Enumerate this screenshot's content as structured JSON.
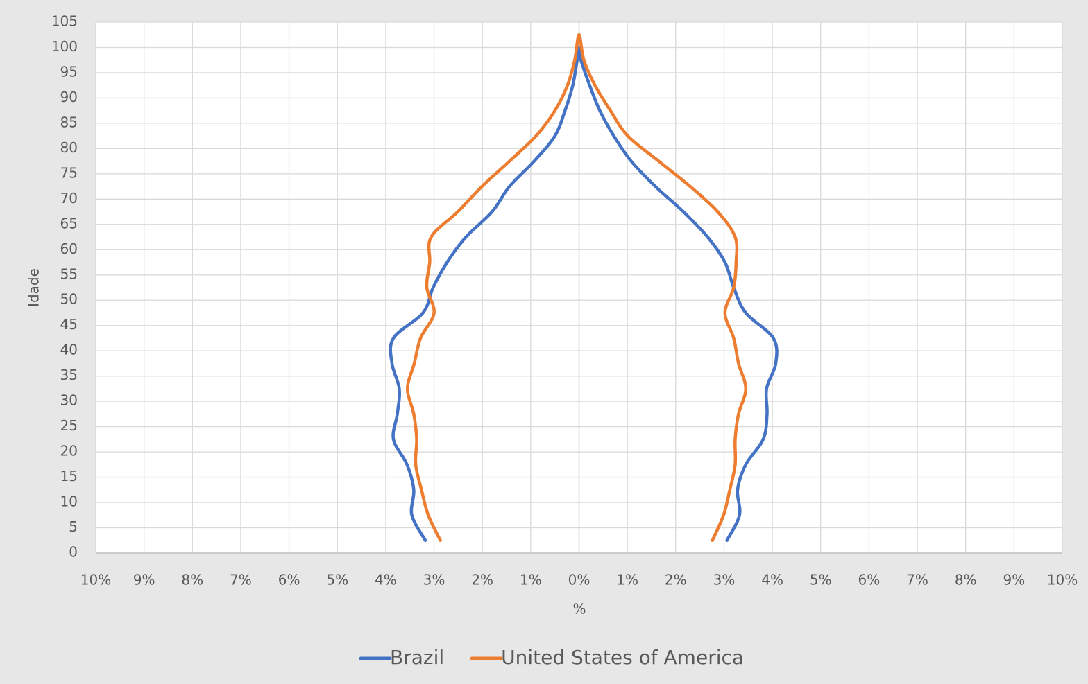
{
  "chart_data": {
    "type": "line",
    "x_label": "%",
    "y_label": "Idade",
    "xlim": [
      -10,
      10
    ],
    "ylim": [
      0,
      105
    ],
    "xticks": [
      {
        "value": -10,
        "label": "10%"
      },
      {
        "value": -9,
        "label": "9%"
      },
      {
        "value": -8,
        "label": "8%"
      },
      {
        "value": -7,
        "label": "7%"
      },
      {
        "value": -6,
        "label": "6%"
      },
      {
        "value": -5,
        "label": "5%"
      },
      {
        "value": -4,
        "label": "4%"
      },
      {
        "value": -3,
        "label": "3%"
      },
      {
        "value": -2,
        "label": "2%"
      },
      {
        "value": -1,
        "label": "1%"
      },
      {
        "value": 0,
        "label": "0%"
      },
      {
        "value": 1,
        "label": "1%"
      },
      {
        "value": 2,
        "label": "2%"
      },
      {
        "value": 3,
        "label": "3%"
      },
      {
        "value": 4,
        "label": "4%"
      },
      {
        "value": 5,
        "label": "5%"
      },
      {
        "value": 6,
        "label": "6%"
      },
      {
        "value": 7,
        "label": "7%"
      },
      {
        "value": 8,
        "label": "8%"
      },
      {
        "value": 9,
        "label": "9%"
      },
      {
        "value": 10,
        "label": "10%"
      }
    ],
    "yticks": [
      0,
      5,
      10,
      15,
      20,
      25,
      30,
      35,
      40,
      45,
      50,
      55,
      60,
      65,
      70,
      75,
      80,
      85,
      90,
      95,
      100,
      105
    ],
    "grid": true,
    "legend": "bottom",
    "series": [
      {
        "name": "Brazil",
        "color": "#4472c4",
        "x": [
          -3.18,
          -3.46,
          -3.42,
          -3.56,
          -3.84,
          -3.76,
          -3.72,
          -3.87,
          -3.84,
          -3.23,
          -3.02,
          -2.73,
          -2.34,
          -1.8,
          -1.44,
          -0.93,
          -0.5,
          -0.29,
          -0.13,
          -0.04,
          0,
          0.04,
          0.22,
          0.43,
          0.72,
          1.08,
          1.58,
          2.16,
          2.66,
          3.02,
          3.2,
          3.45,
          4.02,
          4.07,
          3.88,
          3.89,
          3.81,
          3.45,
          3.28,
          3.32,
          3.06
        ],
        "y": [
          2.5,
          7.5,
          12.5,
          17.5,
          22.5,
          27.5,
          32.5,
          37.5,
          42.5,
          47.5,
          52.5,
          57.5,
          62.5,
          67.5,
          72.5,
          77.5,
          82.5,
          87.5,
          92.5,
          97.5,
          100,
          97.5,
          92.5,
          87.5,
          82.5,
          77.5,
          72.5,
          67.5,
          62.5,
          57.5,
          52.5,
          47.5,
          42.5,
          37.5,
          32.5,
          27.5,
          22.5,
          17.5,
          12.5,
          7.5,
          2.5
        ]
      },
      {
        "name": "United States of America",
        "color": "#ed7d31",
        "x": [
          -2.87,
          -3.12,
          -3.26,
          -3.38,
          -3.36,
          -3.42,
          -3.55,
          -3.41,
          -3.28,
          -3.0,
          -3.15,
          -3.09,
          -3.06,
          -2.51,
          -2.01,
          -1.44,
          -0.89,
          -0.5,
          -0.24,
          -0.09,
          0,
          0.1,
          0.33,
          0.65,
          1.01,
          1.65,
          2.3,
          2.87,
          3.23,
          3.25,
          3.2,
          3.02,
          3.2,
          3.3,
          3.45,
          3.3,
          3.23,
          3.23,
          3.12,
          2.99,
          2.76
        ],
        "y": [
          2.5,
          7.5,
          12.5,
          17.5,
          22.5,
          27.5,
          32.5,
          37.5,
          42.5,
          47.5,
          52.5,
          57.5,
          62.5,
          67.5,
          72.5,
          77.5,
          82.5,
          87.5,
          92.5,
          97.5,
          102.5,
          97.5,
          92.5,
          87.5,
          82.5,
          77.5,
          72.5,
          67.5,
          62.5,
          57.5,
          52.5,
          47.5,
          42.5,
          37.5,
          32.5,
          27.5,
          22.5,
          17.5,
          12.5,
          7.5,
          2.5
        ]
      }
    ]
  }
}
